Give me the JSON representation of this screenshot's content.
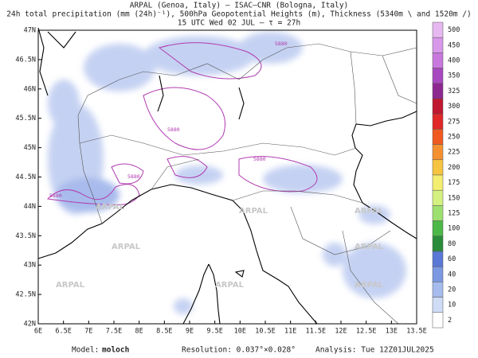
{
  "header": {
    "line1": "ARPAL (Genoa, Italy)  –  ISAC–CNR (Bologna, Italy)",
    "line2": "24h total precipitation (mm (24h)⁻¹), 500hPa Geopotential Heights (m), Thickness (5340m \\ and 1520m /)",
    "line3": "15 UTC Wed 02 JUL  –  τ = 27h"
  },
  "map": {
    "lon_labels": [
      "6E",
      "6.5E",
      "7E",
      "7.5E",
      "8E",
      "8.5E",
      "9E",
      "9.5E",
      "10E",
      "10.5E",
      "11E",
      "11.5E",
      "12E",
      "12.5E",
      "13E",
      "13.5E"
    ],
    "lat_labels": [
      "47N",
      "46.5N",
      "46N",
      "45.5N",
      "45N",
      "44.5N",
      "44N",
      "43.5N",
      "43N",
      "42.5N",
      "42N"
    ],
    "watermark": "ARPAL",
    "contour_label": "5880"
  },
  "colorbar": {
    "levels": [
      500,
      450,
      400,
      350,
      325,
      300,
      275,
      250,
      225,
      200,
      175,
      150,
      125,
      100,
      80,
      60,
      40,
      20,
      10,
      2
    ],
    "colors": [
      "#e6b8f0",
      "#d898ea",
      "#c878dc",
      "#a848c0",
      "#8c2890",
      "#c01830",
      "#e02828",
      "#f05a20",
      "#f49030",
      "#f6c440",
      "#f4ee70",
      "#d4f080",
      "#9ee070",
      "#4cb848",
      "#2a8c3a",
      "#5a78d6",
      "#7c98e2",
      "#a6bcee",
      "#cfdcf6",
      "#ffffff"
    ]
  },
  "footer": {
    "model_label": "Model:",
    "model": "moloch",
    "resolution": "Resolution: 0.037°×0.028°",
    "analysis": "Analysis: Tue 12Z01JUL2025"
  }
}
